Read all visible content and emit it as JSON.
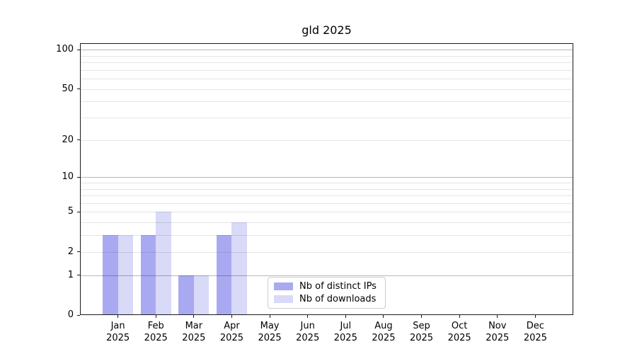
{
  "chart_data": {
    "type": "bar",
    "title": "gld 2025",
    "categories": [
      "Jan",
      "Feb",
      "Mar",
      "Apr",
      "May",
      "Jun",
      "Jul",
      "Aug",
      "Sep",
      "Oct",
      "Nov",
      "Dec"
    ],
    "x_tick_year": "2025",
    "series": [
      {
        "name": "Nb of distinct IPs",
        "color": "#a9a9f2",
        "values": [
          3,
          3,
          1,
          3,
          0,
          0,
          0,
          0,
          0,
          0,
          0,
          0
        ]
      },
      {
        "name": "Nb of downloads",
        "color": "#d9d9f8",
        "values": [
          3,
          5,
          1,
          4,
          0,
          0,
          0,
          0,
          0,
          0,
          0,
          0
        ]
      }
    ],
    "y_axis": {
      "scale": "log1p",
      "min": 0,
      "max": 112,
      "labeled_ticks": [
        0,
        1,
        2,
        5,
        10,
        20,
        50,
        100
      ],
      "minor_gridlines": [
        3,
        4,
        6,
        7,
        8,
        9,
        30,
        40,
        60,
        70,
        80,
        90
      ],
      "dark_gridlines": [
        1,
        10,
        100
      ]
    },
    "legend": {
      "position": "lower center",
      "items": [
        "Nb of distinct IPs",
        "Nb of downloads"
      ]
    },
    "grid": true,
    "colors": {
      "bar_distinct_ips": "#a9a9f2",
      "bar_downloads": "#d9d9f8",
      "major_grid": "rgba(0,0,0,0.28)",
      "minor_grid": "rgba(0,0,0,0.10)",
      "spine": "#1a1a1a",
      "text": "#000000",
      "background": "#ffffff"
    }
  }
}
